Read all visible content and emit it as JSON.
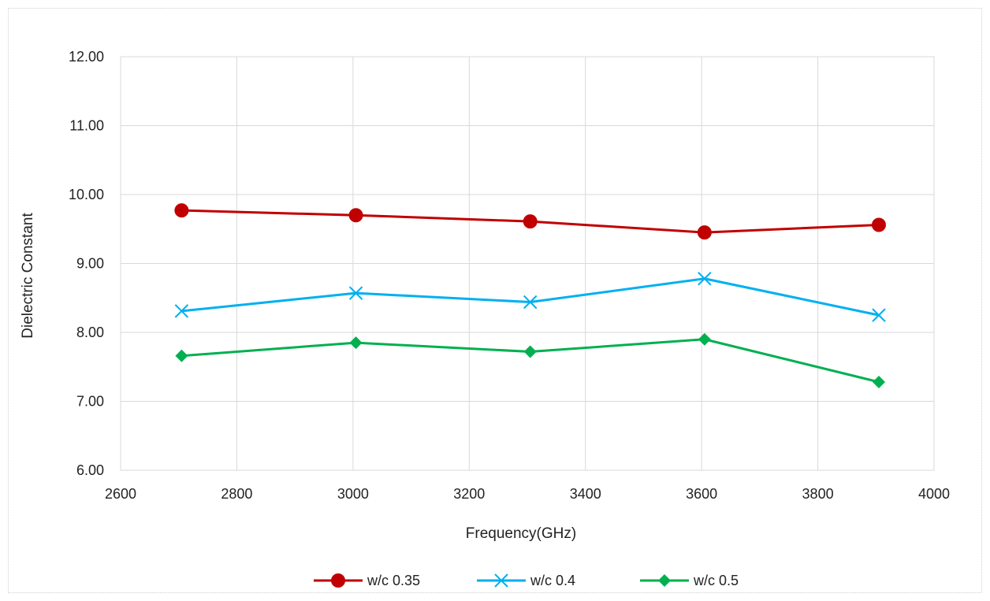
{
  "chart_data": {
    "type": "line",
    "title": "",
    "xlabel": "Frequency(GHz)",
    "ylabel": "Dielectric Constant",
    "xlim": [
      2600,
      4000
    ],
    "ylim": [
      6.0,
      12.0
    ],
    "x_ticks": [
      "2600",
      "2800",
      "3000",
      "3200",
      "3400",
      "3600",
      "3800",
      "4000"
    ],
    "y_ticks": [
      "6.00",
      "7.00",
      "8.00",
      "9.00",
      "10.00",
      "11.00",
      "12.00"
    ],
    "grid": true,
    "legend_position": "bottom",
    "series": [
      {
        "name": "w/c 0.35",
        "color": "#c00000",
        "marker": "circle",
        "x": [
          2705,
          3005,
          3305,
          3605,
          3905
        ],
        "y": [
          9.77,
          9.7,
          9.61,
          9.45,
          9.56
        ]
      },
      {
        "name": "w/c 0.4",
        "color": "#00b0f0",
        "marker": "x",
        "x": [
          2705,
          3005,
          3305,
          3605,
          3905
        ],
        "y": [
          8.31,
          8.57,
          8.44,
          8.78,
          8.25
        ]
      },
      {
        "name": "w/c 0.5",
        "color": "#00b050",
        "marker": "diamond",
        "x": [
          2705,
          3005,
          3305,
          3605,
          3905
        ],
        "y": [
          7.66,
          7.85,
          7.72,
          7.9,
          7.28
        ]
      }
    ]
  }
}
